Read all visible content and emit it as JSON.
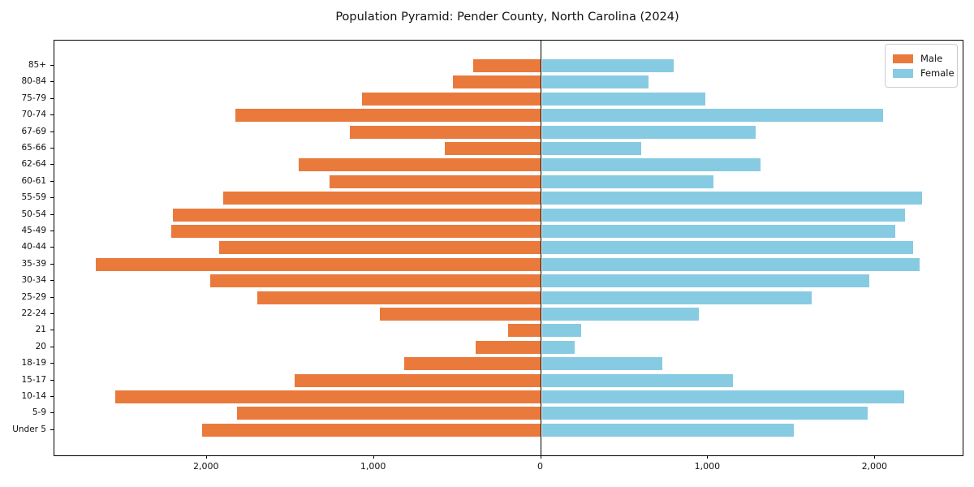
{
  "chart_data": {
    "type": "bar",
    "subtype": "population_pyramid",
    "title": "Population Pyramid: Pender County, North Carolina (2024)",
    "categories": [
      "85+",
      "80-84",
      "75-79",
      "70-74",
      "67-69",
      "65-66",
      "62-64",
      "60-61",
      "55-59",
      "50-54",
      "45-49",
      "40-44",
      "35-39",
      "30-34",
      "25-29",
      "22-24",
      "21",
      "20",
      "18-19",
      "15-17",
      "10-14",
      "5-9",
      "Under 5"
    ],
    "categories_order": "top_to_bottom",
    "series": [
      {
        "name": "Male",
        "side": "left",
        "color": "#E97A3C",
        "values": [
          405,
          525,
          1070,
          1830,
          1145,
          575,
          1450,
          1265,
          1900,
          2205,
          2215,
          1925,
          2665,
          1980,
          1700,
          965,
          195,
          390,
          820,
          1475,
          2550,
          1820,
          2030
        ]
      },
      {
        "name": "Female",
        "side": "right",
        "color": "#87CBE3",
        "values": [
          790,
          640,
          980,
          2040,
          1280,
          595,
          1310,
          1025,
          2275,
          2175,
          2115,
          2220,
          2260,
          1960,
          1615,
          940,
          235,
          195,
          720,
          1145,
          2170,
          1950,
          1510
        ]
      }
    ],
    "x_ticks": [
      {
        "value": -2000,
        "label": "2,000"
      },
      {
        "value": -1000,
        "label": "1,000"
      },
      {
        "value": 0,
        "label": "0"
      },
      {
        "value": 1000,
        "label": "1,000"
      },
      {
        "value": 2000,
        "label": "2,000"
      }
    ],
    "xlim": [
      -2912,
      2523
    ],
    "ylabel": "",
    "xlabel": "",
    "grid": false,
    "legend_position": "upper_right"
  },
  "colors": {
    "axis": "#000000",
    "legend_border": "#cccccc",
    "background": "#ffffff"
  }
}
